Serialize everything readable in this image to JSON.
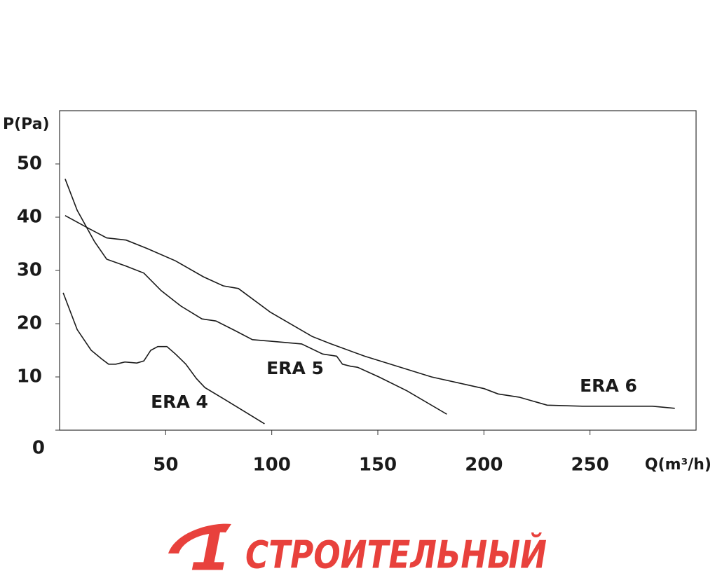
{
  "chart_data": {
    "type": "line",
    "y_label": "P(Pa)",
    "x_label": "Q(m³/h)",
    "xlim": [
      0,
      300
    ],
    "ylim": [
      0,
      60
    ],
    "xticks": [
      50,
      100,
      150,
      200,
      250
    ],
    "yticks": [
      0,
      10,
      20,
      30,
      40,
      50
    ],
    "grid": false,
    "series": [
      {
        "name": "ERA 4",
        "color": "#1a1a1a",
        "x": [
          1.7,
          8.3,
          14.9,
          19.8,
          23.1,
          26.5,
          30.8,
          36.4,
          39.7,
          43,
          46.3,
          50.6,
          54.6,
          59.5,
          64.5,
          68.5,
          77.7,
          87.6,
          96.6
        ],
        "values": [
          25.8,
          18.9,
          15.0,
          13.4,
          12.4,
          12.4,
          12.8,
          12.6,
          13.0,
          15.0,
          15.7,
          15.7,
          14.3,
          12.4,
          9.7,
          8.0,
          5.8,
          3.4,
          1.2
        ]
      },
      {
        "name": "ERA 5",
        "color": "#1a1a1a",
        "x": [
          2.6,
          8.3,
          16.5,
          22.2,
          31.4,
          39.7,
          47.9,
          57.2,
          67.1,
          73.7,
          82.7,
          90.9,
          102.5,
          114.1,
          124,
          130.6,
          133.3,
          137.2,
          140.5,
          150.5,
          163.7,
          182.5
        ],
        "values": [
          47.2,
          41.3,
          35.4,
          32.1,
          30.8,
          29.5,
          26.2,
          23.3,
          20.9,
          20.5,
          18.7,
          17.0,
          16.6,
          16.2,
          14.3,
          13.9,
          12.4,
          12.0,
          11.8,
          10.0,
          7.4,
          3.0
        ]
      },
      {
        "name": "ERA 6",
        "color": "#1a1a1a",
        "x": [
          2.6,
          13.2,
          22.2,
          31.4,
          41.3,
          54.6,
          67.8,
          77.1,
          84.3,
          99.2,
          119.0,
          127.3,
          143.8,
          175.3,
          200.1,
          206.7,
          216.6,
          229.8,
          246.4,
          279.4,
          290
        ],
        "values": [
          40.3,
          38.0,
          36.1,
          35.7,
          34.1,
          31.8,
          28.8,
          27.1,
          26.6,
          22.2,
          17.6,
          16.3,
          13.9,
          10.0,
          7.8,
          6.8,
          6.2,
          4.7,
          4.5,
          4.5,
          4.1
        ]
      }
    ]
  },
  "logo": {
    "digit": "1",
    "text": "СТРОИТЕЛЬНЫЙ"
  }
}
